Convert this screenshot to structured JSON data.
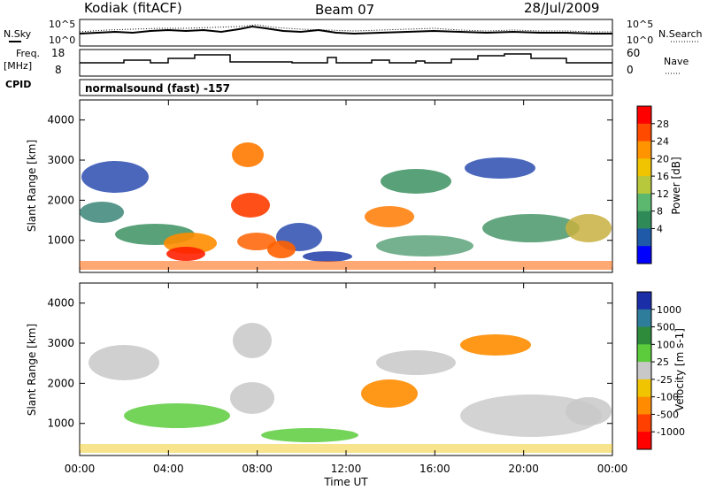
{
  "header": {
    "station": "Kodiak (fitACF)",
    "beam": "Beam 07",
    "date": "28/Jul/2009"
  },
  "top_panels": {
    "nsky_label": "N.Sky",
    "nsky_ticks": [
      "10^5",
      "10^0"
    ],
    "nsearch_label": "N.Search",
    "nsearch_ticks": [
      "10^5",
      "10^0"
    ],
    "freq_label_1": "Freq.",
    "freq_label_2": "[MHz]",
    "freq_ticks": [
      "18",
      "8"
    ],
    "nave_label": "Nave",
    "nave_ticks": [
      "60",
      "0"
    ],
    "cpid_label": "CPID",
    "cpid_text": "normalsound (fast) -157"
  },
  "chart_data": [
    {
      "type": "heatmap",
      "panel": "power",
      "ylabel": "Slant Range [km]",
      "xlabel": "",
      "yticks": [
        "4000",
        "3000",
        "2000",
        "1000"
      ],
      "ylim": [
        200,
        4500
      ],
      "colorbar_label": "Power [dB]",
      "colorbar_ticks": [
        "28",
        "24",
        "20",
        "16",
        "12",
        "8",
        "4"
      ],
      "colorbar_colors": [
        "#ff0000",
        "#ff4a00",
        "#ff9400",
        "#f0c400",
        "#b8c83c",
        "#5cb86e",
        "#2e8b57",
        "#1e5aa8",
        "#0000ff"
      ]
    },
    {
      "type": "heatmap",
      "panel": "velocity",
      "ylabel": "Slant Range [km]",
      "xlabel": "Time UT",
      "xticks": [
        "00:00",
        "04:00",
        "08:00",
        "12:00",
        "16:00",
        "20:00",
        "00:00"
      ],
      "yticks": [
        "4000",
        "3000",
        "2000",
        "1000"
      ],
      "ylim": [
        200,
        4500
      ],
      "colorbar_label": "Velocity [m s-1]",
      "colorbar_ticks": [
        "1000",
        "500",
        "100",
        "25",
        "-25",
        "-100",
        "-500",
        "-1000"
      ],
      "colorbar_colors": [
        "#1a2ea8",
        "#2e7d9a",
        "#2e8b3c",
        "#5ccb3c",
        "#c8c8c8",
        "#f0c400",
        "#ff8c00",
        "#ff4000",
        "#ff0000"
      ]
    }
  ]
}
